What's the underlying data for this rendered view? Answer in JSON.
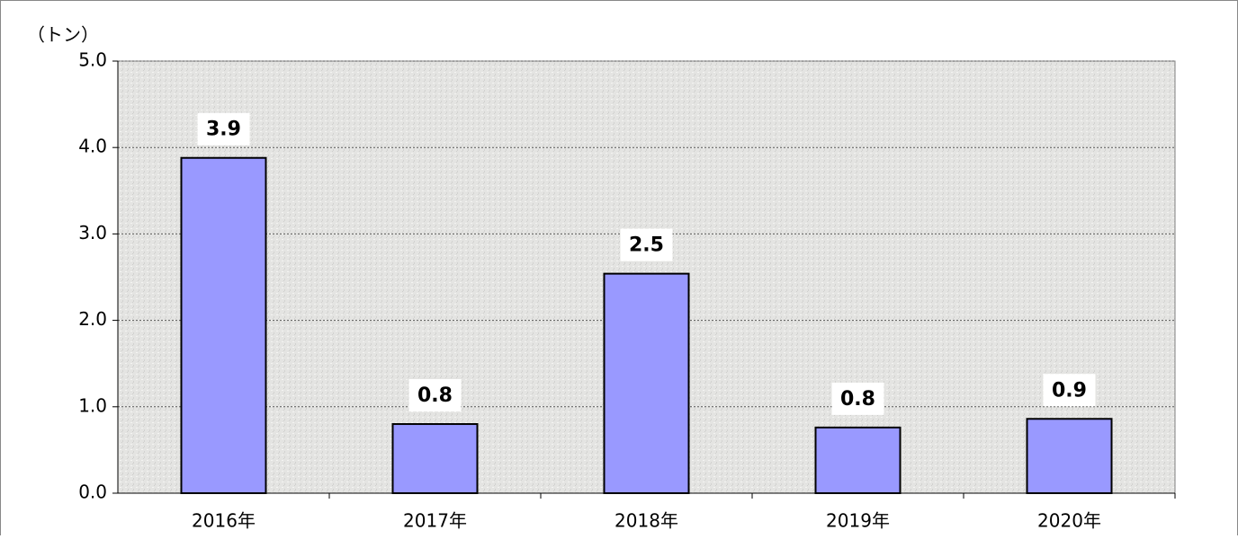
{
  "chart_data": {
    "type": "bar",
    "ylabel": "（トン）",
    "categories": [
      "2016年",
      "2017年",
      "2018年",
      "2019年",
      "2020年"
    ],
    "values": [
      3.88,
      0.8,
      2.54,
      0.76,
      0.86
    ],
    "value_labels": [
      "3.9",
      "0.8",
      "2.5",
      "0.8",
      "0.9"
    ],
    "color": "#9999ff",
    "ylim": [
      0,
      5
    ],
    "yticks": [
      {
        "value": 0,
        "label": "0.0"
      },
      {
        "value": 1,
        "label": "1.0"
      },
      {
        "value": 2,
        "label": "2.0"
      },
      {
        "value": 3,
        "label": "3.0"
      },
      {
        "value": 4,
        "label": "4.0"
      },
      {
        "value": 5,
        "label": "5.0"
      }
    ],
    "grid": true
  }
}
